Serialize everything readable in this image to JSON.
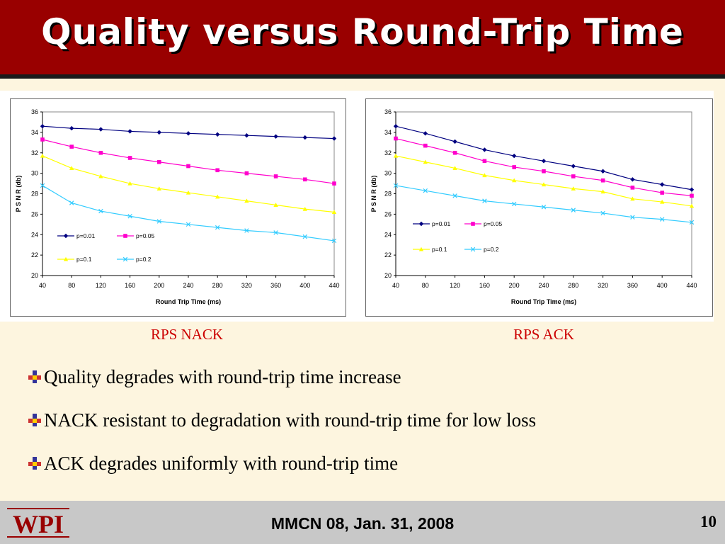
{
  "slide": {
    "title": "Quality versus Round-Trip Time",
    "captions": [
      "RPS NACK",
      "RPS ACK"
    ],
    "bullets": [
      "Quality degrades with round-trip time increase",
      "NACK resistant to degradation with round-trip time for low loss",
      "ACK degrades uniformly with round-trip time"
    ],
    "footer": "MMCN 08, Jan. 31, 2008",
    "page_number": "10",
    "logo_text": "WPI"
  },
  "colors": {
    "title_bar": "#990000",
    "caption": "#cc0000",
    "p001": "#000080",
    "p005": "#ff00cc",
    "p01": "#ffff00",
    "p02": "#33ccff"
  },
  "chart_data": [
    {
      "type": "line",
      "title": "",
      "xlabel": "Round Trip Time (ms)",
      "ylabel": "P S N R (db)",
      "x": [
        40,
        80,
        120,
        160,
        200,
        240,
        280,
        320,
        360,
        400,
        440
      ],
      "ylim": [
        20,
        36
      ],
      "yticks": [
        20,
        22,
        24,
        26,
        28,
        30,
        32,
        34,
        36
      ],
      "grid": false,
      "legend": "inside-lower-left",
      "series": [
        {
          "name": "p=0.01",
          "marker": "diamond",
          "values": [
            34.6,
            34.4,
            34.3,
            34.1,
            34.0,
            33.9,
            33.8,
            33.7,
            33.6,
            33.5,
            33.4
          ]
        },
        {
          "name": "p=0.05",
          "marker": "square",
          "values": [
            33.3,
            32.6,
            32.0,
            31.5,
            31.1,
            30.7,
            30.3,
            30.0,
            29.7,
            29.4,
            29.0
          ]
        },
        {
          "name": "p=0.1",
          "marker": "triangle",
          "values": [
            31.7,
            30.5,
            29.7,
            29.0,
            28.5,
            28.1,
            27.7,
            27.3,
            26.9,
            26.5,
            26.2
          ]
        },
        {
          "name": "p=0.2",
          "marker": "x",
          "values": [
            28.8,
            27.1,
            26.3,
            25.8,
            25.3,
            25.0,
            24.7,
            24.4,
            24.2,
            23.8,
            23.4
          ]
        }
      ]
    },
    {
      "type": "line",
      "title": "",
      "xlabel": "Round Trip Time (ms)",
      "ylabel": "P S N R (db)",
      "x": [
        40,
        80,
        120,
        160,
        200,
        240,
        280,
        320,
        360,
        400,
        440
      ],
      "ylim": [
        20,
        36
      ],
      "yticks": [
        20,
        22,
        24,
        26,
        28,
        30,
        32,
        34,
        36
      ],
      "grid": false,
      "legend": "inside-lower-left",
      "series": [
        {
          "name": "p=0.01",
          "marker": "diamond",
          "values": [
            34.6,
            33.9,
            33.1,
            32.3,
            31.7,
            31.2,
            30.7,
            30.2,
            29.4,
            28.9,
            28.4
          ]
        },
        {
          "name": "p=0.05",
          "marker": "square",
          "values": [
            33.4,
            32.7,
            32.0,
            31.2,
            30.6,
            30.2,
            29.7,
            29.3,
            28.6,
            28.1,
            27.8
          ]
        },
        {
          "name": "p=0.1",
          "marker": "triangle",
          "values": [
            31.7,
            31.1,
            30.5,
            29.8,
            29.3,
            28.9,
            28.5,
            28.2,
            27.5,
            27.2,
            26.8
          ]
        },
        {
          "name": "p=0.2",
          "marker": "x",
          "values": [
            28.8,
            28.3,
            27.8,
            27.3,
            27.0,
            26.7,
            26.4,
            26.1,
            25.7,
            25.5,
            25.2
          ]
        }
      ]
    }
  ]
}
